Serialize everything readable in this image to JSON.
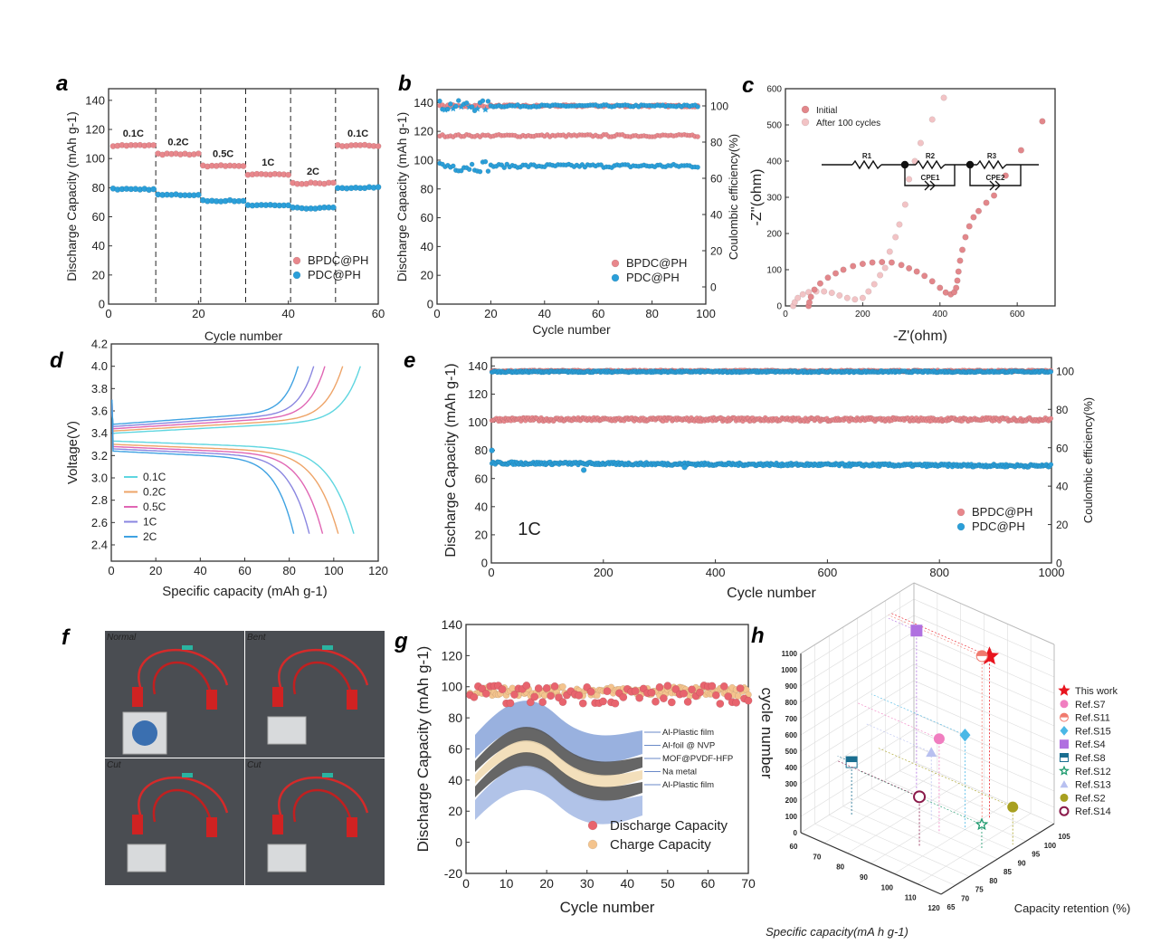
{
  "figure": {
    "panel_labels": [
      "a",
      "b",
      "c",
      "d",
      "e",
      "f",
      "g",
      "h"
    ]
  },
  "colors": {
    "bpdc": "#e8878c",
    "pdc": "#2b9fd9",
    "initial": "#e2878b",
    "after": "#f2c3c5",
    "discharge": "#e8646e",
    "charge": "#f4c48e",
    "star": "#e8141e"
  },
  "photos": {
    "type": "photo-grid",
    "labels": [
      "Normal",
      "Bent",
      "Cut",
      "Cut"
    ]
  },
  "chart_data": [
    {
      "panel": "a",
      "type": "scatter",
      "xlabel": "Cycle number",
      "ylabel": "Discharge Capacity (mAh g-1)",
      "xlim": [
        0,
        60
      ],
      "ylim": [
        0,
        148
      ],
      "xticks": [
        "0",
        "20",
        "40",
        "60"
      ],
      "yticks": [
        "0",
        "20",
        "40",
        "60",
        "80",
        "100",
        "120",
        "140"
      ],
      "dividers": [
        10.5,
        20.5,
        30.5,
        40.5,
        50.5
      ],
      "legend": {
        "placement": "bottom-right",
        "entries": [
          "BPDC@PH",
          "PDC@PH"
        ]
      },
      "segments": [
        {
          "rate": "0.1C",
          "cycles": [
            1,
            10
          ],
          "BPDC@PH": 109,
          "PDC@PH": 79
        },
        {
          "rate": "0.2C",
          "cycles": [
            11,
            20
          ],
          "BPDC@PH": 103,
          "PDC@PH": 75
        },
        {
          "rate": "0.5C",
          "cycles": [
            21,
            30
          ],
          "BPDC@PH": 95,
          "PDC@PH": 71
        },
        {
          "rate": "1C",
          "cycles": [
            31,
            40
          ],
          "BPDC@PH": 89,
          "PDC@PH": 68
        },
        {
          "rate": "2C",
          "cycles": [
            41,
            50
          ],
          "BPDC@PH": 83,
          "PDC@PH": 66
        },
        {
          "rate": "0.1C",
          "cycles": [
            51,
            60
          ],
          "BPDC@PH": 109,
          "PDC@PH": 80
        }
      ]
    },
    {
      "panel": "b",
      "type": "scatter",
      "xlabel": "Cycle number",
      "ylabel": "Discharge Capacity (mAh g-1)",
      "y2label": "Coulombic efficiency(%)",
      "xlim": [
        0,
        100
      ],
      "ylim": [
        0,
        149
      ],
      "y2lim": [
        -9.5,
        109
      ],
      "xticks": [
        "0",
        "20",
        "40",
        "60",
        "80",
        "100"
      ],
      "yticks": [
        "0",
        "20",
        "40",
        "60",
        "80",
        "100",
        "120",
        "140"
      ],
      "y2ticks": [
        "0",
        "20",
        "40",
        "60",
        "80",
        "100"
      ],
      "legend": {
        "placement": "bottom-right",
        "entries": [
          "BPDC@PH",
          "PDC@PH"
        ]
      },
      "series": [
        {
          "name": "BPDC@PH",
          "metric": "coulombic efficiency",
          "axis": "right",
          "cycles": [
            1,
            97
          ],
          "value": 100,
          "spread": 0.6,
          "marker": "circle"
        },
        {
          "name": "PDC@PH",
          "metric": "coulombic efficiency",
          "axis": "right",
          "cycles": [
            1,
            97
          ],
          "value": 100,
          "spread": 0.6,
          "early_spread": 3,
          "marker": "star"
        },
        {
          "name": "BPDC@PH",
          "metric": "discharge capacity",
          "axis": "left",
          "cycles": [
            1,
            97
          ],
          "value": 117,
          "spread": 0.8,
          "marker": "circle"
        },
        {
          "name": "PDC@PH",
          "metric": "discharge capacity",
          "axis": "left",
          "cycles": [
            1,
            97
          ],
          "value": 96,
          "spread": 1.2,
          "early_spread": 4,
          "marker": "circle"
        }
      ]
    },
    {
      "panel": "c",
      "type": "scatter",
      "xlabel": "-Z'(ohm)",
      "ylabel": "-Z''(ohm)",
      "xlim": [
        0,
        698
      ],
      "ylim": [
        0,
        600
      ],
      "xticks": [
        "0",
        "200",
        "400",
        "600"
      ],
      "yticks": [
        "0",
        "100",
        "200",
        "300",
        "400",
        "500",
        "600"
      ],
      "legend": {
        "placement": "top-left",
        "entries": [
          "Initial",
          "After 100 cycles"
        ]
      },
      "circuit": [
        "R1",
        "R2",
        "R3",
        "CPE1",
        "CPE2"
      ],
      "series": [
        {
          "name": "Initial",
          "points": [
            [
              60,
              0
            ],
            [
              62,
              10
            ],
            [
              66,
              25
            ],
            [
              75,
              45
            ],
            [
              90,
              62
            ],
            [
              110,
              78
            ],
            [
              130,
              90
            ],
            [
              150,
              100
            ],
            [
              175,
              110
            ],
            [
              200,
              116
            ],
            [
              225,
              120
            ],
            [
              250,
              121
            ],
            [
              275,
              120
            ],
            [
              300,
              113
            ],
            [
              320,
              104
            ],
            [
              340,
              95
            ],
            [
              360,
              83
            ],
            [
              380,
              68
            ],
            [
              400,
              50
            ],
            [
              415,
              37
            ],
            [
              428,
              32
            ],
            [
              437,
              38
            ],
            [
              442,
              50
            ],
            [
              445,
              70
            ],
            [
              448,
              95
            ],
            [
              452,
              125
            ],
            [
              458,
              155
            ],
            [
              466,
              190
            ],
            [
              476,
              220
            ],
            [
              487,
              245
            ],
            [
              500,
              262
            ],
            [
              520,
              285
            ],
            [
              540,
              305
            ],
            [
              570,
              360
            ],
            [
              610,
              430
            ],
            [
              665,
              510
            ]
          ]
        },
        {
          "name": "After 100 cycles",
          "points": [
            [
              20,
              0
            ],
            [
              24,
              10
            ],
            [
              32,
              22
            ],
            [
              45,
              32
            ],
            [
              60,
              38
            ],
            [
              80,
              40
            ],
            [
              100,
              40
            ],
            [
              120,
              36
            ],
            [
              140,
              29
            ],
            [
              160,
              22
            ],
            [
              180,
              18
            ],
            [
              200,
              22
            ],
            [
              215,
              40
            ],
            [
              230,
              60
            ],
            [
              245,
              85
            ],
            [
              258,
              105
            ],
            [
              270,
              150
            ],
            [
              285,
              190
            ],
            [
              295,
              225
            ],
            [
              310,
              280
            ],
            [
              320,
              350
            ],
            [
              335,
              400
            ],
            [
              350,
              450
            ],
            [
              380,
              515
            ],
            [
              410,
              575
            ]
          ]
        }
      ]
    },
    {
      "panel": "d",
      "type": "line",
      "xlabel": "Specific capacity (mAh g-1)",
      "ylabel": "Voltage(V)",
      "xlim": [
        0,
        120
      ],
      "ylim": [
        2.254,
        4.2
      ],
      "xticks": [
        "0",
        "20",
        "40",
        "60",
        "80",
        "100",
        "120"
      ],
      "yticks": [
        "2.4",
        "2.6",
        "2.8",
        "3.0",
        "3.2",
        "3.4",
        "3.6",
        "3.8",
        "4.0",
        "4.2"
      ],
      "legend": {
        "placement": "bottom-left",
        "entries": [
          "0.1C",
          "0.2C",
          "0.5C",
          "1C",
          "2C"
        ]
      },
      "cutoff_voltage": [
        2.5,
        4.0
      ],
      "series": [
        {
          "name": "0.1C",
          "color": "#5fd6e0",
          "charge_capacity": 112,
          "discharge_capacity": 109,
          "charge_plateau": 3.4,
          "discharge_plateau": 3.33
        },
        {
          "name": "0.2C",
          "color": "#eea468",
          "charge_capacity": 104,
          "discharge_capacity": 102,
          "charge_plateau": 3.42,
          "discharge_plateau": 3.3
        },
        {
          "name": "0.5C",
          "color": "#e066b4",
          "charge_capacity": 96,
          "discharge_capacity": 95,
          "charge_plateau": 3.44,
          "discharge_plateau": 3.28
        },
        {
          "name": "1C",
          "color": "#8a86e0",
          "charge_capacity": 91,
          "discharge_capacity": 89,
          "charge_plateau": 3.46,
          "discharge_plateau": 3.26
        },
        {
          "name": "2C",
          "color": "#3fa2e2",
          "charge_capacity": 84,
          "discharge_capacity": 82,
          "charge_plateau": 3.48,
          "discharge_plateau": 3.24
        }
      ]
    },
    {
      "panel": "e",
      "type": "scatter",
      "xlabel": "Cycle number",
      "ylabel": "Discharge Capacity (mAh g-1)",
      "y2label": "Coulombic efficiency(%)",
      "xlim": [
        0,
        1000
      ],
      "ylim": [
        0,
        146
      ],
      "y2lim": [
        0,
        107
      ],
      "xticks": [
        "0",
        "200",
        "400",
        "600",
        "800",
        "1000"
      ],
      "yticks": [
        "0",
        "20",
        "40",
        "60",
        "80",
        "100",
        "120",
        "140"
      ],
      "y2ticks": [
        "0",
        "20",
        "40",
        "60",
        "80",
        "100"
      ],
      "annotation": "1C",
      "legend": {
        "placement": "bottom-right",
        "entries": [
          "BPDC@PH",
          "PDC@PH"
        ]
      },
      "series": [
        {
          "name": "BPDC@PH",
          "metric": "coulombic efficiency",
          "axis": "right",
          "cycles": [
            1,
            1000
          ],
          "value": 100,
          "spread": 0.4
        },
        {
          "name": "PDC@PH",
          "metric": "coulombic efficiency",
          "axis": "right",
          "cycles": [
            1,
            1000
          ],
          "value": 99.6,
          "spread": 0.4
        },
        {
          "name": "BPDC@PH",
          "metric": "discharge capacity",
          "axis": "left",
          "cycles": [
            1,
            1000
          ],
          "value": 102,
          "spread": 1.3
        },
        {
          "name": "PDC@PH",
          "metric": "discharge capacity",
          "axis": "left",
          "cycles": [
            1,
            1000
          ],
          "value": 71,
          "end_value": 69,
          "spread": 1.0,
          "outliers": [
            [
              1,
              80
            ],
            [
              165,
              66
            ],
            [
              345,
              68
            ]
          ]
        }
      ]
    },
    {
      "panel": "g",
      "type": "scatter",
      "xlabel": "Cycle number",
      "ylabel": "Discharge Capacity (mAh g-1)",
      "xlim": [
        0,
        70
      ],
      "ylim": [
        -20,
        140
      ],
      "xticks": [
        "0",
        "10",
        "20",
        "30",
        "40",
        "50",
        "60",
        "70"
      ],
      "yticks": [
        "-20",
        "0",
        "20",
        "40",
        "60",
        "80",
        "100",
        "120",
        "140"
      ],
      "legend": {
        "placement": "bottom-right",
        "entries": [
          "Discharge Capacity",
          "Charge Capacity"
        ]
      },
      "inset_layers": [
        "Al-Plastic film",
        "Al-foil @ NVP",
        "MOF@PVDF-HFP",
        "Na metal",
        "Al-Plastic film"
      ],
      "series": [
        {
          "name": "Charge Capacity",
          "cycles": [
            1,
            70
          ],
          "value": 97,
          "spread": 3
        },
        {
          "name": "Discharge Capacity",
          "cycles": [
            1,
            70
          ],
          "value": 95,
          "spread": 6
        }
      ]
    },
    {
      "panel": "h",
      "type": "scatter3d",
      "xlabel": "Specific capacity(mA h g-1)",
      "ylabel": "Capacity retention (%)",
      "zlabel": "cycle number",
      "xlim": [
        60,
        120
      ],
      "ylim": [
        65,
        105
      ],
      "zlim": [
        0,
        1100
      ],
      "xticks": [
        "60",
        "70",
        "80",
        "90",
        "100",
        "110",
        "120"
      ],
      "yticks": [
        "65",
        "70",
        "75",
        "80",
        "85",
        "90",
        "95",
        "100",
        "105"
      ],
      "zticks": [
        "0",
        "100",
        "200",
        "300",
        "400",
        "500",
        "600",
        "700",
        "800",
        "900",
        "1000",
        "1100"
      ],
      "legend": {
        "placement": "right"
      },
      "points": [
        {
          "name": "This work",
          "capacity": 102,
          "retention": 97,
          "cycles": 1000,
          "marker": "star",
          "color": "#e8141e"
        },
        {
          "name": "Ref.S7",
          "capacity": 95,
          "retention": 85,
          "cycles": 580,
          "marker": "circle",
          "color": "#f07ec0"
        },
        {
          "name": "Ref.S11",
          "capacity": 100,
          "retention": 96,
          "cycles": 1000,
          "marker": "half-circle",
          "color": "#f07a6e"
        },
        {
          "name": "Ref.S15",
          "capacity": 100,
          "retention": 90,
          "cycles": 580,
          "marker": "diamond",
          "color": "#4ab8e6"
        },
        {
          "name": "Ref.S4",
          "capacity": 72,
          "retention": 96,
          "cycles": 980,
          "marker": "square",
          "color": "#b070e0"
        },
        {
          "name": "Ref.S8",
          "capacity": 66,
          "retention": 78,
          "cycles": 330,
          "marker": "half-square",
          "color": "#1a6e90"
        },
        {
          "name": "Ref.S12",
          "capacity": 112,
          "retention": 86,
          "cycles": 150,
          "marker": "open-star",
          "color": "#1e9a6e"
        },
        {
          "name": "Ref.S13",
          "capacity": 88,
          "retention": 88,
          "cycles": 420,
          "marker": "triangle",
          "color": "#b8c0f0"
        },
        {
          "name": "Ref.S2",
          "capacity": 118,
          "retention": 92,
          "cycles": 230,
          "marker": "circle",
          "color": "#a8a020"
        },
        {
          "name": "Ref.S14",
          "capacity": 95,
          "retention": 78,
          "cycles": 300,
          "marker": "open-circle",
          "color": "#8a1a4a"
        }
      ]
    }
  ]
}
